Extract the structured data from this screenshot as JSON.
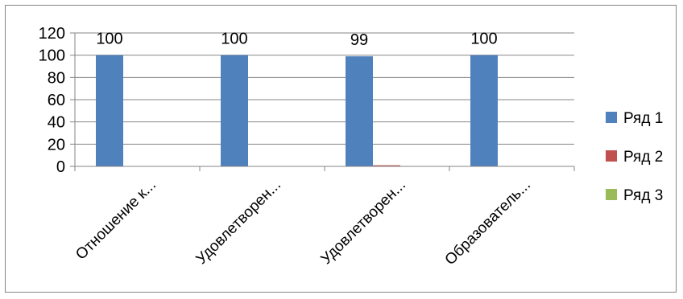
{
  "chart_data": {
    "type": "bar",
    "categories": [
      "Отношение к...",
      "Удовлетворен...",
      "Удовлетворен...",
      "Образователь..."
    ],
    "series": [
      {
        "name": "Ряд 1",
        "values": [
          100,
          100,
          99,
          100
        ],
        "color": "#4F81BD"
      },
      {
        "name": "Ряд 2",
        "values": [
          0,
          0,
          1,
          0
        ],
        "color": "#C0504D"
      },
      {
        "name": "Ряд 3",
        "values": [
          0,
          0,
          0,
          0
        ],
        "color": "#9BBB59"
      }
    ],
    "data_labels": [
      "100",
      "100",
      "99",
      "100"
    ],
    "ylim": [
      0,
      120
    ],
    "yticks": [
      "0",
      "20",
      "40",
      "60",
      "80",
      "100",
      "120"
    ],
    "grid": true,
    "legend_position": "right"
  }
}
